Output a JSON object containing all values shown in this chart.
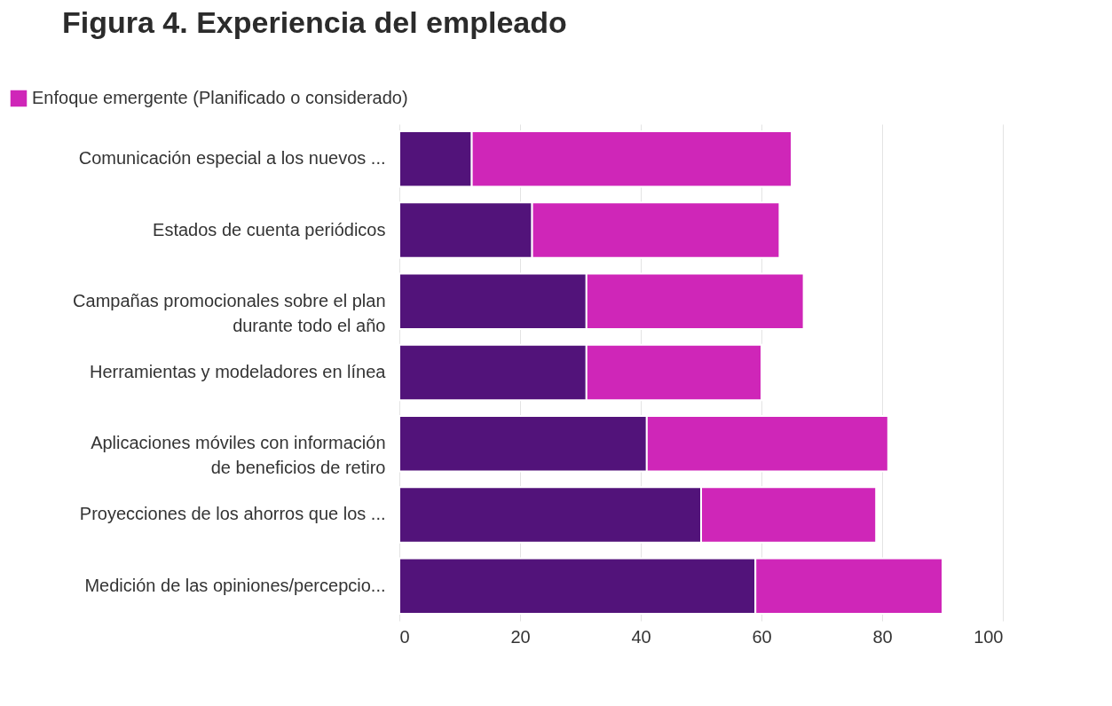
{
  "chart_data": {
    "type": "bar",
    "orientation": "horizontal",
    "stacked": true,
    "title": "Figura 4. Experiencia del empleado",
    "categories": [
      "Comunicación especial a los nuevos ...",
      "Estados de cuenta periódicos",
      "Campañas promocionales sobre el plan durante todo el año",
      "Herramientas y modeladores en línea",
      "Aplicaciones móviles con información de beneficios de retiro",
      "Proyecciones de los ahorros que los ...",
      "Medición de las opiniones/percepcio..."
    ],
    "series": [
      {
        "color": "#52137a",
        "values": [
          12,
          22,
          31,
          31,
          41,
          50,
          59
        ]
      },
      {
        "name": "Enfoque emergente (Planificado o considerado)",
        "color": "#cf26b8",
        "values": [
          53,
          41,
          36,
          29,
          40,
          29,
          31
        ]
      }
    ],
    "xlim": [
      0,
      100
    ],
    "xticks": [
      0,
      20,
      40,
      60,
      80,
      100
    ],
    "grid": "x",
    "legend": "top left"
  }
}
